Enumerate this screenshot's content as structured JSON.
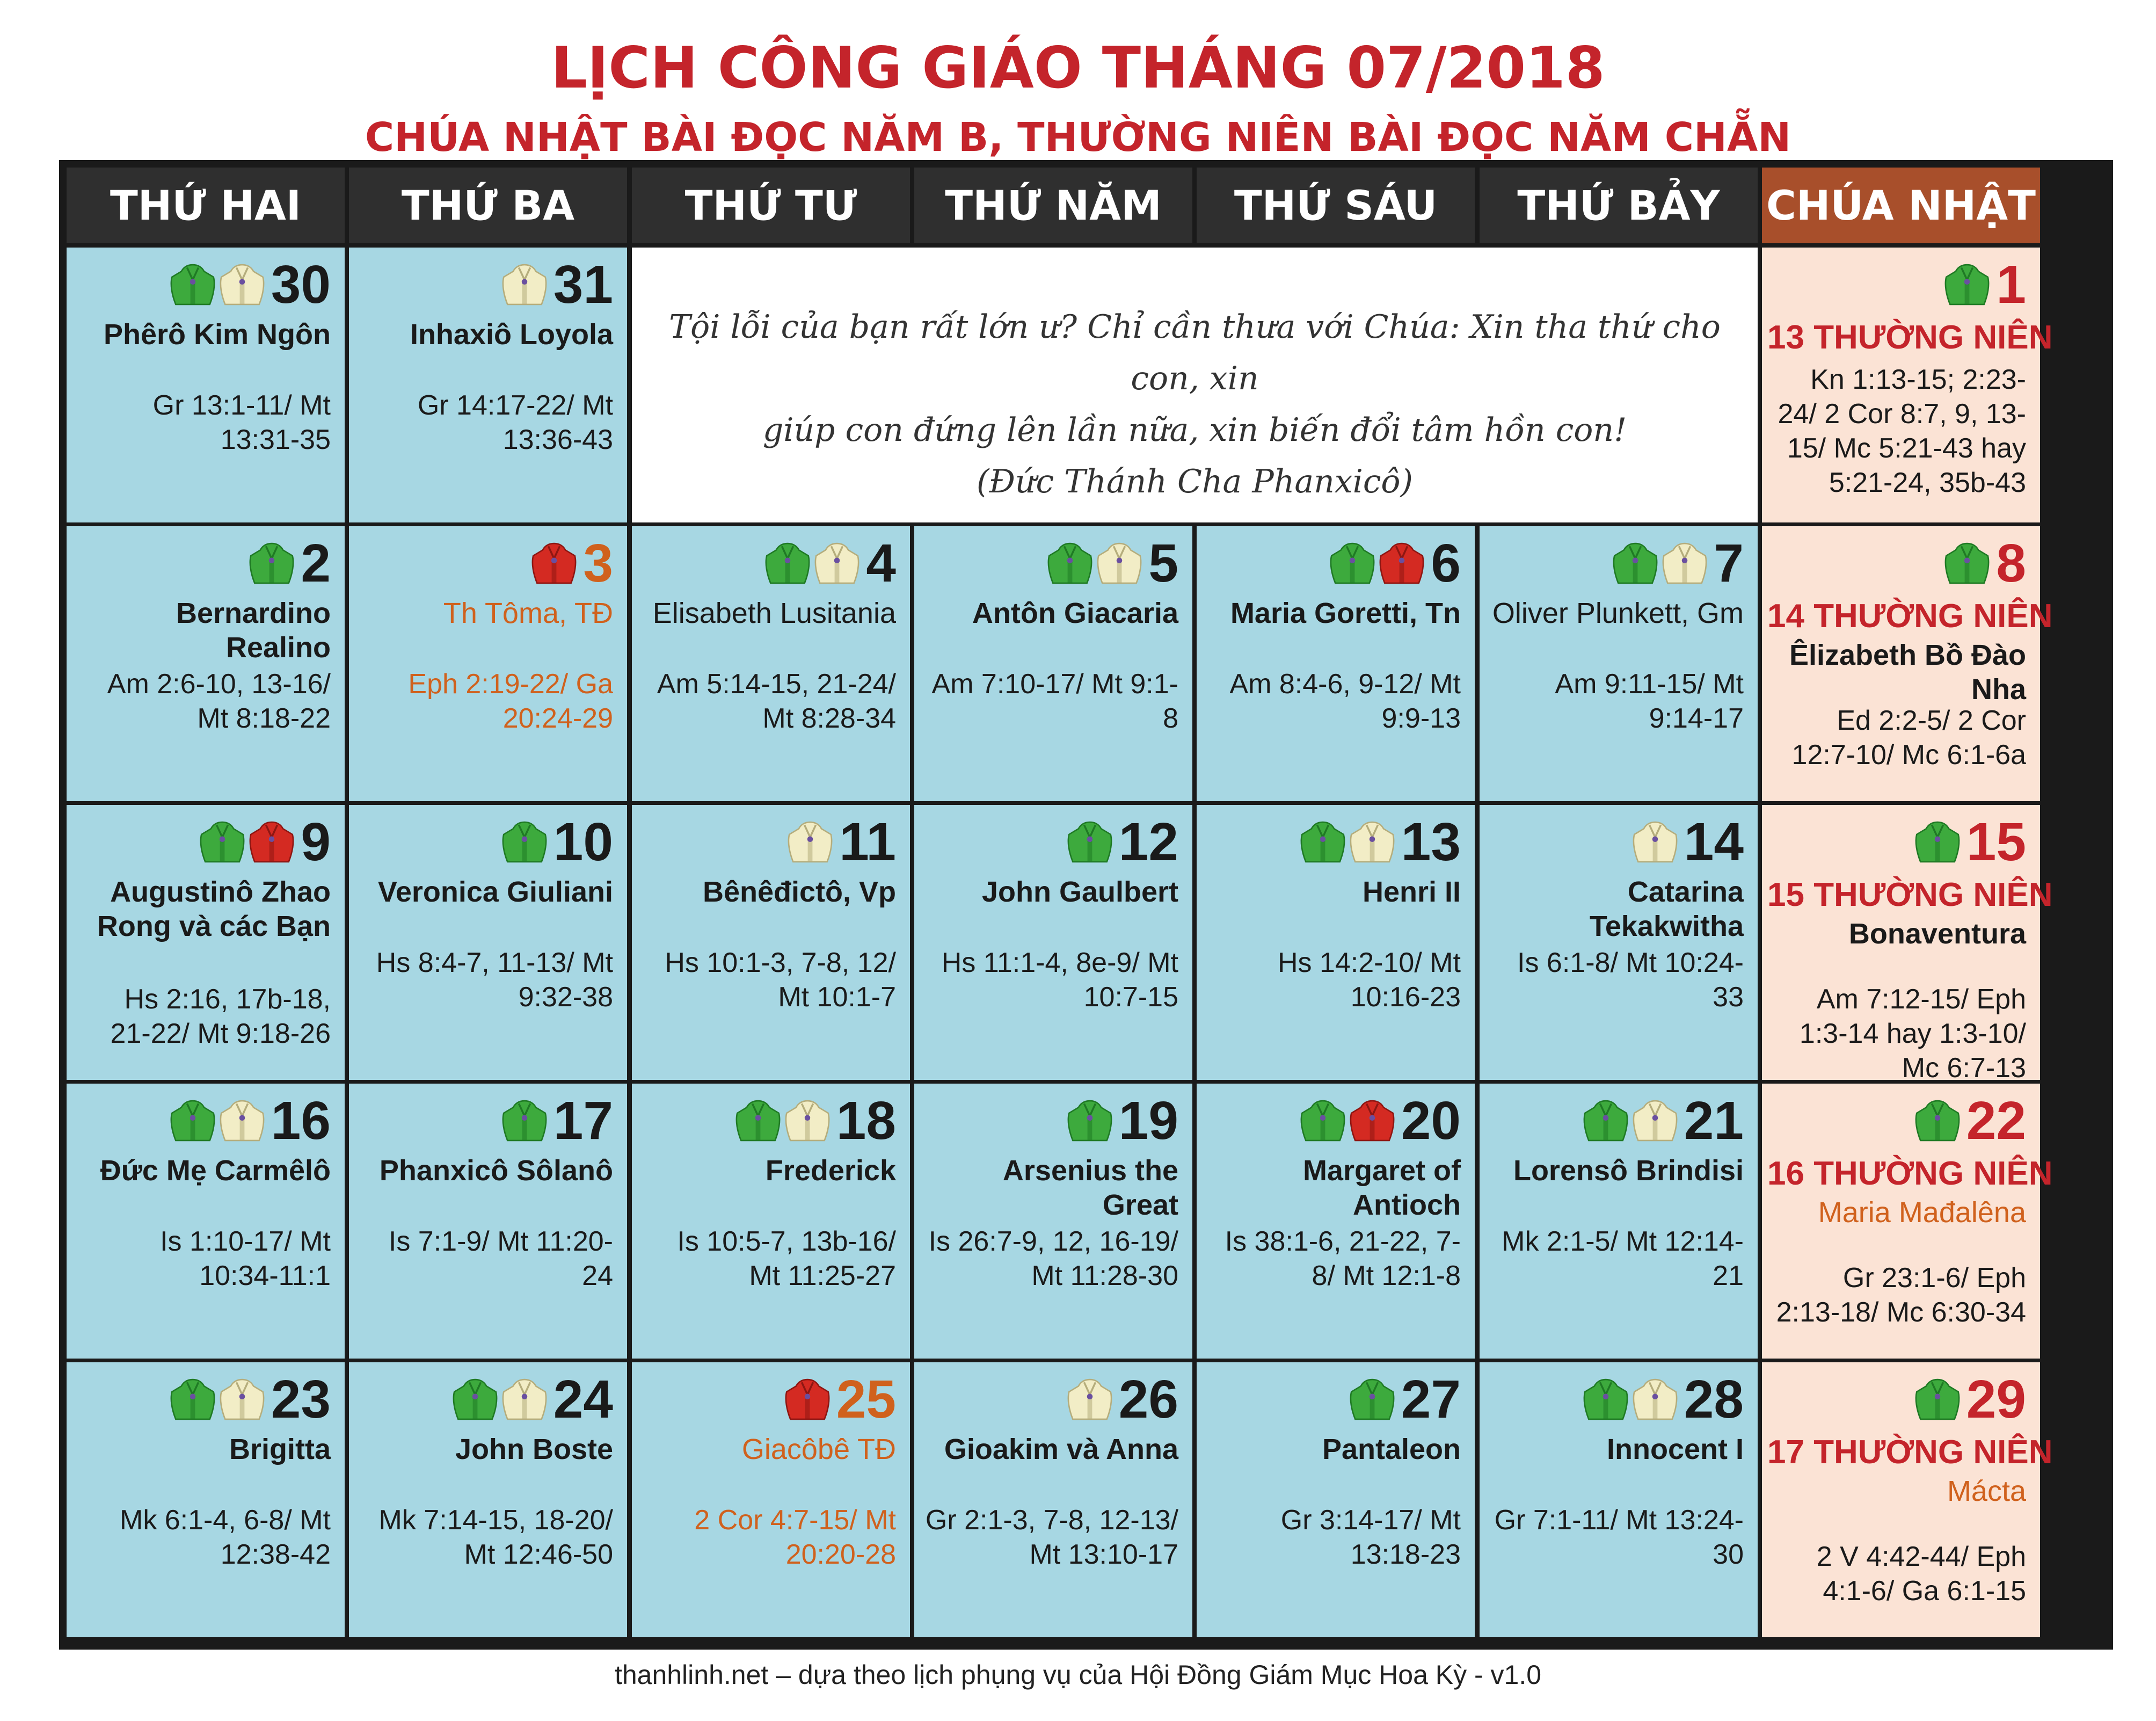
{
  "title": "LỊCH CÔNG GIÁO THÁNG 07/2018",
  "subtitle": "CHÚA NHẬT BÀI ĐỌC NĂM B, THƯỜNG NIÊN BÀI ĐỌC NĂM CHẴN",
  "headers": [
    "THỨ HAI",
    "THỨ BA",
    "THỨ TƯ",
    "THỨ NĂM",
    "THỨ SÁU",
    "THỨ BẢY",
    "CHÚA NHẬT"
  ],
  "colors": {
    "title_red": "#c4242b",
    "feast_orange": "#d0611d",
    "cell_blue": "#a7d7e3",
    "cell_sunday": "#fbe3d5",
    "header_bg": "#2f2f2f",
    "header_sunday": "#a84f2b",
    "vest_green": "#3daa3d",
    "vest_white": "#f2edc6",
    "vest_red": "#d42a22"
  },
  "quote": {
    "line1": "Tội lỗi của bạn rất lớn ư? Chỉ cần thưa với Chúa: Xin tha thứ cho con, xin",
    "line2": "giúp con đứng lên lần nữa, xin biến đổi tâm hồn con!",
    "line3": "(Đức Thánh Cha Phanxicô)"
  },
  "rows": [
    [
      {
        "day": "30",
        "vestments": [
          "green",
          "white"
        ],
        "saint": "Phêrô Kim Ngôn",
        "readings": "Gr 13:1-11/ Mt 13:31-35"
      },
      {
        "day": "31",
        "vestments": [
          "white"
        ],
        "saint": "Inhaxiô Loyola",
        "readings": "Gr 14:17-22/ Mt 13:36-43"
      },
      {
        "quote": true
      },
      {
        "day": "1",
        "sunday": true,
        "vestments": [
          "green"
        ],
        "week": "13 THƯỜNG NIÊN",
        "readings": "Kn 1:13-15; 2:23-24/ 2 Cor 8:7, 9, 13-15/ Mc 5:21-43 hay 5:21-24, 35b-43"
      }
    ],
    [
      {
        "day": "2",
        "vestments": [
          "green"
        ],
        "saint": "Bernardino Realino",
        "readings": "Am 2:6-10, 13-16/ Mt 8:18-22"
      },
      {
        "day": "3",
        "feast": true,
        "vestments": [
          "red"
        ],
        "saint": "Th Tôma, TĐ",
        "readings": "Eph 2:19-22/ Ga 20:24-29"
      },
      {
        "day": "4",
        "vestments": [
          "green",
          "white"
        ],
        "saint": "Elisabeth Lusitania",
        "saint_normal": true,
        "readings": "Am 5:14-15, 21-24/ Mt 8:28-34"
      },
      {
        "day": "5",
        "vestments": [
          "green",
          "white"
        ],
        "saint": "Antôn Giacaria",
        "readings": "Am 7:10-17/ Mt 9:1-8"
      },
      {
        "day": "6",
        "vestments": [
          "green",
          "red"
        ],
        "saint": "Maria Goretti, Tn",
        "readings": "Am 8:4-6, 9-12/ Mt 9:9-13"
      },
      {
        "day": "7",
        "vestments": [
          "green",
          "white"
        ],
        "saint": "Oliver Plunkett, Gm",
        "saint_normal": true,
        "readings": "Am 9:11-15/ Mt 9:14-17"
      },
      {
        "day": "8",
        "sunday": true,
        "vestments": [
          "green"
        ],
        "week": "14 THƯỜNG NIÊN",
        "saint": "Êlizabeth Bồ Đào Nha",
        "readings": "Ed 2:2-5/ 2 Cor 12:7-10/ Mc 6:1-6a"
      }
    ],
    [
      {
        "day": "9",
        "vestments": [
          "green",
          "red"
        ],
        "saint": "Augustinô Zhao Rong và các Bạn",
        "readings": "Hs 2:16, 17b-18, 21-22/ Mt 9:18-26"
      },
      {
        "day": "10",
        "vestments": [
          "green"
        ],
        "saint": "Veronica Giuliani",
        "readings": "Hs 8:4-7, 11-13/ Mt 9:32-38"
      },
      {
        "day": "11",
        "vestments": [
          "white"
        ],
        "saint": "Bênêđictô, Vp",
        "readings": "Hs 10:1-3, 7-8, 12/ Mt 10:1-7"
      },
      {
        "day": "12",
        "vestments": [
          "green"
        ],
        "saint": "John Gaulbert",
        "readings": "Hs 11:1-4, 8e-9/ Mt 10:7-15"
      },
      {
        "day": "13",
        "vestments": [
          "green",
          "white"
        ],
        "saint": "Henri II",
        "readings": "Hs 14:2-10/ Mt 10:16-23"
      },
      {
        "day": "14",
        "vestments": [
          "white"
        ],
        "saint": "Catarina Tekakwitha",
        "readings": "Is 6:1-8/ Mt 10:24-33"
      },
      {
        "day": "15",
        "sunday": true,
        "vestments": [
          "green"
        ],
        "week": "15 THƯỜNG NIÊN",
        "saint": "Bonaventura",
        "readings": "Am 7:12-15/ Eph 1:3-14 hay 1:3-10/ Mc 6:7-13"
      }
    ],
    [
      {
        "day": "16",
        "vestments": [
          "green",
          "white"
        ],
        "saint": "Đức Mẹ Carmêlô",
        "readings": "Is 1:10-17/ Mt 10:34-11:1"
      },
      {
        "day": "17",
        "vestments": [
          "green"
        ],
        "saint": "Phanxicô Sôlanô",
        "readings": "Is 7:1-9/ Mt 11:20-24"
      },
      {
        "day": "18",
        "vestments": [
          "green",
          "white"
        ],
        "saint": "Frederick",
        "readings": "Is 10:5-7, 13b-16/ Mt 11:25-27"
      },
      {
        "day": "19",
        "vestments": [
          "green"
        ],
        "saint": "Arsenius the Great",
        "readings": "Is 26:7-9, 12, 16-19/ Mt 11:28-30"
      },
      {
        "day": "20",
        "vestments": [
          "green",
          "red"
        ],
        "saint": "Margaret of Antioch",
        "readings": "Is 38:1-6, 21-22, 7-8/ Mt 12:1-8"
      },
      {
        "day": "21",
        "vestments": [
          "green",
          "white"
        ],
        "saint": "Lorensô Brindisi",
        "readings": "Mk 2:1-5/ Mt 12:14-21"
      },
      {
        "day": "22",
        "sunday": true,
        "vestments": [
          "green"
        ],
        "week": "16 THƯỜNG NIÊN",
        "saint": "Maria Mađalêna",
        "saint_orange": true,
        "readings": "Gr 23:1-6/ Eph 2:13-18/ Mc 6:30-34"
      }
    ],
    [
      {
        "day": "23",
        "vestments": [
          "green",
          "white"
        ],
        "saint": "Brigitta",
        "readings": "Mk 6:1-4, 6-8/ Mt 12:38-42"
      },
      {
        "day": "24",
        "vestments": [
          "green",
          "white"
        ],
        "saint": "John Boste",
        "readings": "Mk 7:14-15, 18-20/ Mt 12:46-50"
      },
      {
        "day": "25",
        "feast": true,
        "vestments": [
          "red"
        ],
        "saint": "Giacôbê TĐ",
        "readings": "2 Cor 4:7-15/ Mt 20:20-28"
      },
      {
        "day": "26",
        "vestments": [
          "white"
        ],
        "saint": "Gioakim và Anna",
        "readings": "Gr 2:1-3, 7-8, 12-13/ Mt 13:10-17"
      },
      {
        "day": "27",
        "vestments": [
          "green"
        ],
        "saint": "Pantaleon",
        "readings": "Gr 3:14-17/ Mt 13:18-23"
      },
      {
        "day": "28",
        "vestments": [
          "green",
          "white"
        ],
        "saint": "Innocent I",
        "readings": "Gr 7:1-11/ Mt 13:24-30"
      },
      {
        "day": "29",
        "sunday": true,
        "vestments": [
          "green"
        ],
        "week": "17 THƯỜNG NIÊN",
        "saint": "Mácta",
        "saint_orange": true,
        "readings": "2 V 4:42-44/ Eph 4:1-6/ Ga 6:1-15"
      }
    ]
  ],
  "footer": "thanhlinh.net – dựa theo lịch phụng vụ của Hội Đồng Giám Mục Hoa Kỳ - v1.0"
}
